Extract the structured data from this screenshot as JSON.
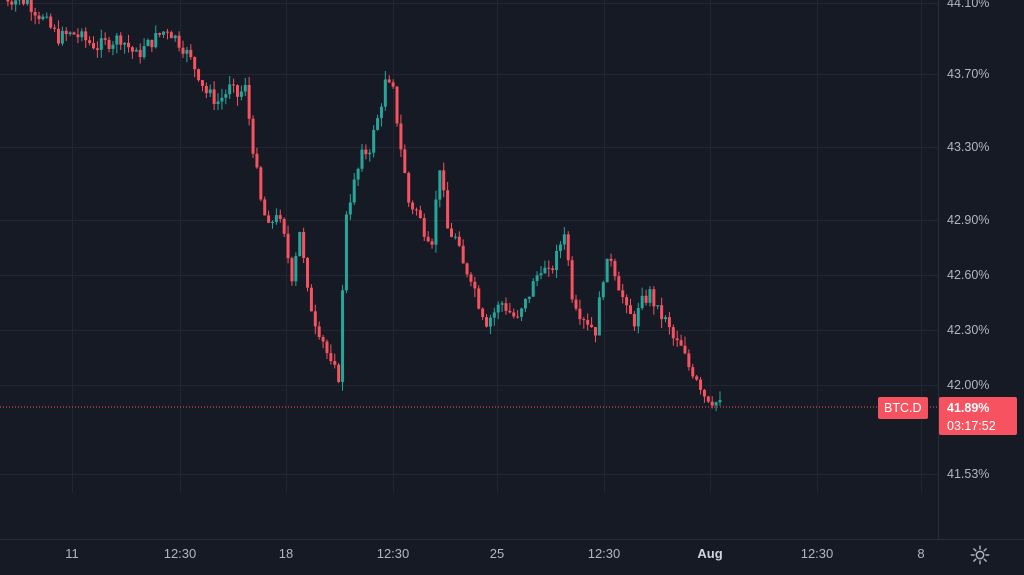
{
  "chart_data": {
    "type": "candlestick",
    "symbol": "BTC.D",
    "current_price_label": "41.89%",
    "countdown": "03:17:52",
    "y_tick_labels": [
      "44.10%",
      "43.70%",
      "43.30%",
      "42.90%",
      "42.60%",
      "42.30%",
      "42.00%",
      "41.53%"
    ],
    "x_tick_labels": [
      "11",
      "12:30",
      "18",
      "12:30",
      "25",
      "12:30",
      "Aug",
      "12:30",
      "8"
    ],
    "ylim": [
      41.3,
      44.12
    ],
    "grid": true,
    "colors": {
      "up": "#26a69a",
      "down": "#f7525f",
      "background": "#161a25",
      "grid": "#232632",
      "text": "#b2b5be"
    },
    "close_path": [
      [
        0,
        44.12
      ],
      [
        6,
        44.1
      ],
      [
        10,
        44.0
      ],
      [
        14,
        43.9
      ],
      [
        18,
        43.92
      ],
      [
        24,
        43.85
      ],
      [
        30,
        43.9
      ],
      [
        34,
        43.8
      ],
      [
        38,
        43.88
      ],
      [
        42,
        43.95
      ],
      [
        46,
        43.85
      ],
      [
        50,
        43.7
      ],
      [
        52,
        43.6
      ],
      [
        55,
        43.55
      ],
      [
        58,
        43.62
      ],
      [
        60,
        43.58
      ],
      [
        62,
        43.62
      ],
      [
        64,
        43.3
      ],
      [
        66,
        43.0
      ],
      [
        68,
        42.85
      ],
      [
        70,
        42.95
      ],
      [
        72,
        42.8
      ],
      [
        74,
        42.6
      ],
      [
        76,
        42.85
      ],
      [
        78,
        42.5
      ],
      [
        80,
        42.35
      ],
      [
        82,
        42.25
      ],
      [
        84,
        42.1
      ],
      [
        86,
        42.05
      ],
      [
        88,
        42.95
      ],
      [
        90,
        43.1
      ],
      [
        92,
        43.25
      ],
      [
        94,
        43.3
      ],
      [
        96,
        43.45
      ],
      [
        98,
        43.65
      ],
      [
        100,
        43.6
      ],
      [
        102,
        43.3
      ],
      [
        104,
        43.0
      ],
      [
        106,
        42.95
      ],
      [
        108,
        42.85
      ],
      [
        110,
        42.8
      ],
      [
        112,
        43.2
      ],
      [
        114,
        42.85
      ],
      [
        116,
        42.8
      ],
      [
        118,
        42.65
      ],
      [
        120,
        42.6
      ],
      [
        122,
        42.45
      ],
      [
        124,
        42.35
      ],
      [
        126,
        42.4
      ],
      [
        128,
        42.45
      ],
      [
        130,
        42.4
      ],
      [
        132,
        42.35
      ],
      [
        134,
        42.45
      ],
      [
        136,
        42.55
      ],
      [
        138,
        42.65
      ],
      [
        140,
        42.6
      ],
      [
        142,
        42.7
      ],
      [
        144,
        42.85
      ],
      [
        146,
        42.5
      ],
      [
        148,
        42.4
      ],
      [
        150,
        42.35
      ],
      [
        152,
        42.3
      ],
      [
        154,
        42.6
      ],
      [
        156,
        42.7
      ],
      [
        158,
        42.55
      ],
      [
        160,
        42.4
      ],
      [
        162,
        42.35
      ],
      [
        164,
        42.45
      ],
      [
        166,
        42.5
      ],
      [
        168,
        42.4
      ],
      [
        170,
        42.35
      ],
      [
        172,
        42.25
      ],
      [
        174,
        42.2
      ],
      [
        176,
        42.1
      ],
      [
        178,
        42.05
      ],
      [
        180,
        41.95
      ],
      [
        182,
        41.92
      ],
      [
        184,
        41.89
      ]
    ]
  },
  "icons": {
    "settings": "gear-icon"
  }
}
